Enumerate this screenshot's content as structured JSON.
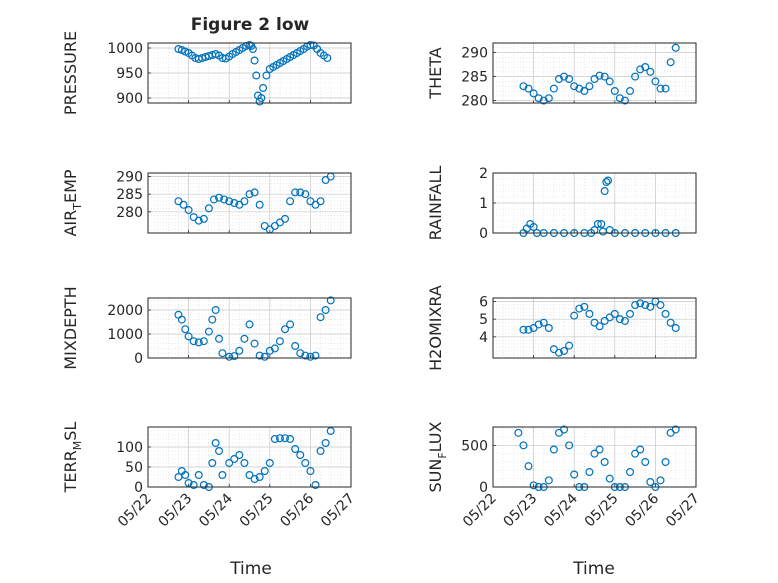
{
  "figure": {
    "title": "Figure 2 low",
    "xlabel": "Time",
    "date_ticks": [
      "05/22",
      "05/23",
      "05/24",
      "05/25",
      "05/26",
      "05/27"
    ],
    "marker_color": "#0072BD"
  },
  "chart_data": [
    {
      "type": "scatter",
      "ylabel": "PRESSURE",
      "subscript": null,
      "xlim": [
        "2023-05-22",
        "2023-05-27"
      ],
      "ylim": [
        890,
        1010
      ],
      "yticks": [
        900,
        950,
        1000
      ],
      "x": [
        "2023-05-22T18:00",
        "2023-05-22T20:00",
        "2023-05-22T22:00",
        "2023-05-23T00:00",
        "2023-05-23T02:00",
        "2023-05-23T04:00",
        "2023-05-23T06:00",
        "2023-05-23T08:00",
        "2023-05-23T10:00",
        "2023-05-23T12:00",
        "2023-05-23T14:00",
        "2023-05-23T16:00",
        "2023-05-23T18:00",
        "2023-05-23T20:00",
        "2023-05-23T22:00",
        "2023-05-24T00:00",
        "2023-05-24T02:00",
        "2023-05-24T04:00",
        "2023-05-24T06:00",
        "2023-05-24T08:00",
        "2023-05-24T10:00",
        "2023-05-24T12:00",
        "2023-05-24T13:00",
        "2023-05-24T14:00",
        "2023-05-24T15:00",
        "2023-05-24T16:00",
        "2023-05-24T17:00",
        "2023-05-24T18:00",
        "2023-05-24T19:00",
        "2023-05-24T20:00",
        "2023-05-24T22:00",
        "2023-05-25T00:00",
        "2023-05-25T02:00",
        "2023-05-25T04:00",
        "2023-05-25T06:00",
        "2023-05-25T08:00",
        "2023-05-25T10:00",
        "2023-05-25T12:00",
        "2023-05-25T14:00",
        "2023-05-25T16:00",
        "2023-05-25T18:00",
        "2023-05-25T20:00",
        "2023-05-25T22:00",
        "2023-05-26T00:00",
        "2023-05-26T02:00",
        "2023-05-26T04:00",
        "2023-05-26T06:00",
        "2023-05-26T08:00",
        "2023-05-26T10:00"
      ],
      "y": [
        998,
        996,
        993,
        990,
        985,
        980,
        978,
        980,
        982,
        984,
        986,
        988,
        985,
        980,
        979,
        983,
        988,
        992,
        996,
        1000,
        1004,
        1006,
        1004,
        998,
        975,
        945,
        905,
        893,
        900,
        920,
        945,
        958,
        962,
        966,
        970,
        974,
        978,
        982,
        986,
        990,
        994,
        998,
        1003,
        1006,
        1005,
        998,
        990,
        985,
        980
      ]
    },
    {
      "type": "scatter",
      "ylabel": "THETA",
      "subscript": null,
      "xlim": [
        "2023-05-22",
        "2023-05-27"
      ],
      "ylim": [
        279.5,
        292
      ],
      "yticks": [
        280,
        285,
        290
      ],
      "x": [
        "2023-05-22T18:00",
        "2023-05-22T21:00",
        "2023-05-23T00:00",
        "2023-05-23T03:00",
        "2023-05-23T06:00",
        "2023-05-23T09:00",
        "2023-05-23T12:00",
        "2023-05-23T15:00",
        "2023-05-23T18:00",
        "2023-05-23T21:00",
        "2023-05-24T00:00",
        "2023-05-24T03:00",
        "2023-05-24T06:00",
        "2023-05-24T09:00",
        "2023-05-24T12:00",
        "2023-05-24T15:00",
        "2023-05-24T18:00",
        "2023-05-24T21:00",
        "2023-05-25T00:00",
        "2023-05-25T03:00",
        "2023-05-25T06:00",
        "2023-05-25T09:00",
        "2023-05-25T12:00",
        "2023-05-25T15:00",
        "2023-05-25T18:00",
        "2023-05-25T21:00",
        "2023-05-26T00:00",
        "2023-05-26T03:00",
        "2023-05-26T06:00",
        "2023-05-26T09:00",
        "2023-05-26T12:00"
      ],
      "y": [
        283,
        282.5,
        281.5,
        280.5,
        280,
        280.5,
        282.5,
        284.5,
        285,
        284.5,
        283,
        282.5,
        282,
        283,
        284.5,
        285.2,
        285,
        284,
        282,
        280.5,
        280,
        282,
        285,
        286.5,
        287,
        286,
        284,
        282.5,
        282.5,
        288,
        291
      ]
    },
    {
      "type": "scatter",
      "ylabel": "AIR",
      "subscript": "T",
      "ylabel_suffix": "EMP",
      "xlim": [
        "2023-05-22",
        "2023-05-27"
      ],
      "ylim": [
        274,
        291
      ],
      "yticks": [
        280,
        285,
        290
      ],
      "x": [
        "2023-05-22T18:00",
        "2023-05-22T21:00",
        "2023-05-23T00:00",
        "2023-05-23T03:00",
        "2023-05-23T06:00",
        "2023-05-23T09:00",
        "2023-05-23T12:00",
        "2023-05-23T15:00",
        "2023-05-23T18:00",
        "2023-05-23T21:00",
        "2023-05-24T00:00",
        "2023-05-24T03:00",
        "2023-05-24T06:00",
        "2023-05-24T09:00",
        "2023-05-24T12:00",
        "2023-05-24T15:00",
        "2023-05-24T18:00",
        "2023-05-24T21:00",
        "2023-05-25T00:00",
        "2023-05-25T03:00",
        "2023-05-25T06:00",
        "2023-05-25T09:00",
        "2023-05-25T12:00",
        "2023-05-25T15:00",
        "2023-05-25T18:00",
        "2023-05-25T21:00",
        "2023-05-26T00:00",
        "2023-05-26T03:00",
        "2023-05-26T06:00",
        "2023-05-26T09:00",
        "2023-05-26T12:00"
      ],
      "y": [
        283,
        282,
        280.5,
        278.5,
        277.5,
        278,
        281,
        283.5,
        284,
        283.5,
        283,
        282.5,
        282,
        283,
        285,
        285.5,
        282,
        276,
        275,
        276,
        277,
        278,
        283,
        285.5,
        285.5,
        285,
        283,
        282,
        283,
        289,
        290
      ]
    },
    {
      "type": "scatter",
      "ylabel": "RAINFALL",
      "subscript": null,
      "xlim": [
        "2023-05-22",
        "2023-05-27"
      ],
      "ylim": [
        0,
        2
      ],
      "yticks": [
        0,
        1,
        2
      ],
      "x": [
        "2023-05-22T18:00",
        "2023-05-22T20:00",
        "2023-05-22T22:00",
        "2023-05-23T00:00",
        "2023-05-23T02:00",
        "2023-05-23T06:00",
        "2023-05-23T12:00",
        "2023-05-23T18:00",
        "2023-05-24T00:00",
        "2023-05-24T06:00",
        "2023-05-24T10:00",
        "2023-05-24T12:00",
        "2023-05-24T14:00",
        "2023-05-24T16:00",
        "2023-05-24T17:00",
        "2023-05-24T18:00",
        "2023-05-24T19:00",
        "2023-05-24T20:00",
        "2023-05-24T21:00",
        "2023-05-25T00:00",
        "2023-05-25T06:00",
        "2023-05-25T12:00",
        "2023-05-25T18:00",
        "2023-05-26T00:00",
        "2023-05-26T06:00",
        "2023-05-26T12:00"
      ],
      "y": [
        0,
        0.15,
        0.3,
        0.2,
        0,
        0,
        0,
        0,
        0,
        0,
        0,
        0.1,
        0.3,
        0.3,
        0.05,
        1.4,
        1.7,
        1.75,
        0.1,
        0,
        0,
        0,
        0,
        0,
        0,
        0
      ]
    },
    {
      "type": "scatter",
      "ylabel": "MIXDEPTH",
      "subscript": null,
      "xlim": [
        "2023-05-22",
        "2023-05-27"
      ],
      "ylim": [
        0,
        2500
      ],
      "yticks": [
        0,
        1000,
        2000
      ],
      "x": [
        "2023-05-22T18:00",
        "2023-05-22T20:00",
        "2023-05-22T22:00",
        "2023-05-23T00:00",
        "2023-05-23T03:00",
        "2023-05-23T06:00",
        "2023-05-23T09:00",
        "2023-05-23T12:00",
        "2023-05-23T14:00",
        "2023-05-23T16:00",
        "2023-05-23T18:00",
        "2023-05-23T20:00",
        "2023-05-24T00:00",
        "2023-05-24T03:00",
        "2023-05-24T06:00",
        "2023-05-24T09:00",
        "2023-05-24T12:00",
        "2023-05-24T15:00",
        "2023-05-24T18:00",
        "2023-05-24T21:00",
        "2023-05-25T00:00",
        "2023-05-25T03:00",
        "2023-05-25T06:00",
        "2023-05-25T09:00",
        "2023-05-25T12:00",
        "2023-05-25T15:00",
        "2023-05-25T18:00",
        "2023-05-25T21:00",
        "2023-05-26T00:00",
        "2023-05-26T03:00",
        "2023-05-26T06:00",
        "2023-05-26T09:00",
        "2023-05-26T12:00"
      ],
      "y": [
        1800,
        1600,
        1200,
        900,
        700,
        650,
        700,
        1100,
        1600,
        2000,
        800,
        200,
        50,
        80,
        300,
        800,
        1400,
        600,
        100,
        50,
        300,
        400,
        700,
        1200,
        1400,
        500,
        200,
        100,
        50,
        100,
        1700,
        2000,
        2400
      ]
    },
    {
      "type": "scatter",
      "ylabel": "H2OMIXRA",
      "subscript": null,
      "xlim": [
        "2023-05-22",
        "2023-05-27"
      ],
      "ylim": [
        2.8,
        6.2
      ],
      "yticks": [
        4,
        5,
        6
      ],
      "x": [
        "2023-05-22T18:00",
        "2023-05-22T21:00",
        "2023-05-23T00:00",
        "2023-05-23T03:00",
        "2023-05-23T06:00",
        "2023-05-23T09:00",
        "2023-05-23T12:00",
        "2023-05-23T15:00",
        "2023-05-23T18:00",
        "2023-05-23T21:00",
        "2023-05-24T00:00",
        "2023-05-24T03:00",
        "2023-05-24T06:00",
        "2023-05-24T09:00",
        "2023-05-24T12:00",
        "2023-05-24T15:00",
        "2023-05-24T18:00",
        "2023-05-24T21:00",
        "2023-05-25T00:00",
        "2023-05-25T03:00",
        "2023-05-25T06:00",
        "2023-05-25T09:00",
        "2023-05-25T12:00",
        "2023-05-25T15:00",
        "2023-05-25T18:00",
        "2023-05-25T21:00",
        "2023-05-26T00:00",
        "2023-05-26T03:00",
        "2023-05-26T06:00",
        "2023-05-26T09:00",
        "2023-05-26T12:00"
      ],
      "y": [
        4.4,
        4.4,
        4.5,
        4.7,
        4.8,
        4.5,
        3.3,
        3.1,
        3.2,
        3.5,
        5.2,
        5.6,
        5.7,
        5.3,
        4.8,
        4.6,
        4.9,
        5.1,
        5.3,
        5.0,
        4.9,
        5.3,
        5.8,
        5.9,
        5.8,
        5.7,
        6.0,
        5.8,
        5.3,
        4.8,
        4.5
      ]
    },
    {
      "type": "scatter",
      "ylabel": "TERR",
      "subscript": "M",
      "ylabel_suffix": "SL",
      "xlim": [
        "2023-05-22",
        "2023-05-27"
      ],
      "ylim": [
        0,
        150
      ],
      "yticks": [
        0,
        50,
        100
      ],
      "x": [
        "2023-05-22T18:00",
        "2023-05-22T20:00",
        "2023-05-22T22:00",
        "2023-05-23T00:00",
        "2023-05-23T03:00",
        "2023-05-23T06:00",
        "2023-05-23T09:00",
        "2023-05-23T12:00",
        "2023-05-23T14:00",
        "2023-05-23T16:00",
        "2023-05-23T18:00",
        "2023-05-23T20:00",
        "2023-05-24T00:00",
        "2023-05-24T03:00",
        "2023-05-24T06:00",
        "2023-05-24T09:00",
        "2023-05-24T12:00",
        "2023-05-24T15:00",
        "2023-05-24T18:00",
        "2023-05-24T21:00",
        "2023-05-25T00:00",
        "2023-05-25T03:00",
        "2023-05-25T06:00",
        "2023-05-25T09:00",
        "2023-05-25T12:00",
        "2023-05-25T15:00",
        "2023-05-25T18:00",
        "2023-05-25T21:00",
        "2023-05-26T00:00",
        "2023-05-26T03:00",
        "2023-05-26T06:00",
        "2023-05-26T09:00",
        "2023-05-26T12:00"
      ],
      "y": [
        25,
        40,
        30,
        10,
        5,
        30,
        5,
        0,
        60,
        110,
        90,
        30,
        60,
        70,
        80,
        60,
        30,
        20,
        25,
        40,
        60,
        120,
        122,
        122,
        120,
        95,
        80,
        60,
        40,
        5,
        90,
        110,
        140
      ]
    },
    {
      "type": "scatter",
      "ylabel": "SUN",
      "subscript": "F",
      "ylabel_suffix": "LUX",
      "xlim": [
        "2023-05-22",
        "2023-05-27"
      ],
      "ylim": [
        0,
        720
      ],
      "yticks": [
        0,
        500
      ],
      "x": [
        "2023-05-22T15:00",
        "2023-05-22T18:00",
        "2023-05-22T21:00",
        "2023-05-23T00:00",
        "2023-05-23T03:00",
        "2023-05-23T06:00",
        "2023-05-23T09:00",
        "2023-05-23T12:00",
        "2023-05-23T15:00",
        "2023-05-23T18:00",
        "2023-05-23T21:00",
        "2023-05-24T00:00",
        "2023-05-24T03:00",
        "2023-05-24T06:00",
        "2023-05-24T09:00",
        "2023-05-24T12:00",
        "2023-05-24T15:00",
        "2023-05-24T18:00",
        "2023-05-24T21:00",
        "2023-05-25T00:00",
        "2023-05-25T03:00",
        "2023-05-25T06:00",
        "2023-05-25T09:00",
        "2023-05-25T12:00",
        "2023-05-25T15:00",
        "2023-05-25T18:00",
        "2023-05-25T21:00",
        "2023-05-26T00:00",
        "2023-05-26T03:00",
        "2023-05-26T06:00",
        "2023-05-26T09:00",
        "2023-05-26T12:00"
      ],
      "y": [
        650,
        500,
        250,
        20,
        0,
        0,
        80,
        450,
        650,
        690,
        500,
        150,
        0,
        0,
        180,
        400,
        450,
        300,
        100,
        0,
        0,
        0,
        180,
        400,
        450,
        300,
        60,
        0,
        80,
        300,
        650,
        690
      ]
    }
  ]
}
